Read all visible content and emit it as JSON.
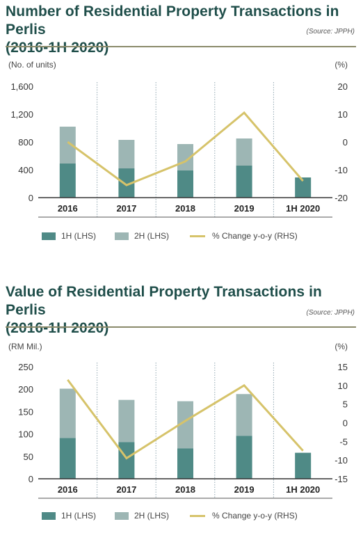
{
  "colors": {
    "h1": "#4f8a86",
    "h2": "#9db6b4",
    "line": "#d6c36a",
    "axis": "#333333",
    "title": "#1f4e4a"
  },
  "charts": [
    {
      "title_line1": "Number of Residential Property Transactions in Perlis",
      "title_line2": "(2016-1H 2020)",
      "source": "(Source: JPPH)",
      "left_unit": "(No. of units)",
      "right_unit": "(%)",
      "legend": {
        "h1": "1H (LHS)",
        "h2": "2H (LHS)",
        "line": "% Change y-o-y (RHS)"
      }
    },
    {
      "title_line1": "Value of Residential Property Transactions in Perlis",
      "title_line2": "(2016-1H 2020)",
      "source": "(Source: JPPH)",
      "left_unit": "(RM Mil.)",
      "right_unit": "(%)",
      "legend": {
        "h1": "1H (LHS)",
        "h2": "2H (LHS)",
        "line": "% Change y-o-y (RHS)"
      }
    }
  ],
  "chart_data": [
    {
      "type": "bar",
      "title": "Number of Residential Property Transactions in Perlis (2016-1H 2020)",
      "categories": [
        "2016",
        "2017",
        "2018",
        "2019",
        "1H 2020"
      ],
      "stacked": true,
      "series": [
        {
          "name": "1H (LHS)",
          "axis": "left",
          "values": [
            490,
            420,
            390,
            460,
            290
          ]
        },
        {
          "name": "2H (LHS)",
          "axis": "left",
          "values": [
            530,
            410,
            380,
            390,
            0
          ]
        },
        {
          "name": "% Change y-o-y (RHS)",
          "axis": "right",
          "type": "line",
          "values": [
            0,
            -15.5,
            -7,
            10.5,
            -14
          ]
        }
      ],
      "y_left": {
        "label": "(No. of units)",
        "ylim": [
          0,
          1600
        ],
        "ticks": [
          0,
          400,
          800,
          1200,
          1600
        ],
        "tick_labels": [
          "0",
          "400",
          "800",
          "1,200",
          "1,600"
        ]
      },
      "y_right": {
        "label": "(%)",
        "ylim": [
          -20,
          20
        ],
        "ticks": [
          -20,
          -10,
          0,
          10,
          20
        ],
        "tick_labels": [
          "-20",
          "-10",
          "0",
          "10",
          "20"
        ]
      },
      "grid": false,
      "legend": "bottom"
    },
    {
      "type": "bar",
      "title": "Value of Residential Property Transactions in Perlis (2016-1H 2020)",
      "categories": [
        "2016",
        "2017",
        "2018",
        "2019",
        "1H 2020"
      ],
      "stacked": true,
      "series": [
        {
          "name": "1H (LHS)",
          "axis": "left",
          "values": [
            91,
            82,
            68,
            96,
            58
          ]
        },
        {
          "name": "2H (LHS)",
          "axis": "left",
          "values": [
            110,
            94,
            105,
            93,
            0
          ]
        },
        {
          "name": "% Change y-o-y (RHS)",
          "axis": "right",
          "type": "line",
          "values": [
            11.5,
            -9.5,
            0.5,
            10,
            -7.5
          ]
        }
      ],
      "y_left": {
        "label": "(RM Mil.)",
        "ylim": [
          0,
          250
        ],
        "ticks": [
          0,
          50,
          100,
          150,
          200,
          250
        ],
        "tick_labels": [
          "0",
          "50",
          "100",
          "150",
          "200",
          "250"
        ]
      },
      "y_right": {
        "label": "(%)",
        "ylim": [
          -15,
          15
        ],
        "ticks": [
          -15,
          -10,
          -5,
          0,
          5,
          10,
          15
        ],
        "tick_labels": [
          "-15",
          "-10",
          "-5",
          "0",
          "5",
          "10",
          "15"
        ]
      },
      "grid": false,
      "legend": "bottom"
    }
  ]
}
